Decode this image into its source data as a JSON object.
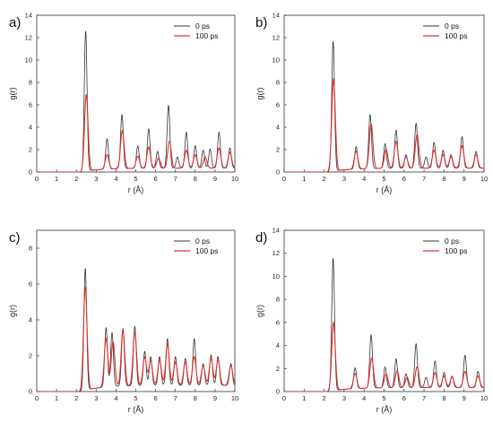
{
  "chart_data": [
    {
      "type": "line",
      "panel_label": "a)",
      "xlabel": "r (Å)",
      "ylabel": "g(r)",
      "xlim": [
        0,
        10
      ],
      "ylim": [
        0,
        14
      ],
      "xticks": [
        0,
        1,
        2,
        3,
        4,
        5,
        6,
        7,
        8,
        9,
        10
      ],
      "yticks": [
        0,
        2,
        4,
        6,
        8,
        10,
        12,
        14
      ],
      "legend": "top-right",
      "series": [
        {
          "name": "0 ps",
          "color": "#333333",
          "peaks": [
            [
              2.47,
              12.5
            ],
            [
              3.55,
              2.7
            ],
            [
              4.3,
              4.8
            ],
            [
              5.1,
              2.0
            ],
            [
              5.65,
              3.5
            ],
            [
              6.1,
              1.5
            ],
            [
              6.65,
              5.6
            ],
            [
              7.1,
              1.0
            ],
            [
              7.55,
              3.2
            ],
            [
              8.0,
              2.0
            ],
            [
              8.4,
              1.6
            ],
            [
              8.75,
              1.7
            ],
            [
              9.2,
              3.2
            ],
            [
              9.75,
              1.8
            ]
          ]
        },
        {
          "name": "100 ps",
          "color": "#e03030",
          "peaks": [
            [
              2.5,
              6.8
            ],
            [
              3.55,
              1.3
            ],
            [
              4.32,
              3.4
            ],
            [
              5.1,
              1.1
            ],
            [
              5.65,
              1.9
            ],
            [
              6.15,
              0.9
            ],
            [
              6.7,
              2.4
            ],
            [
              7.55,
              1.6
            ],
            [
              8.0,
              1.2
            ],
            [
              8.5,
              1.0
            ],
            [
              9.2,
              1.8
            ],
            [
              9.75,
              1.4
            ]
          ]
        }
      ]
    },
    {
      "type": "line",
      "panel_label": "b)",
      "xlabel": "r (Å)",
      "ylabel": "g(r)",
      "xlim": [
        0,
        10
      ],
      "ylim": [
        0,
        14
      ],
      "xticks": [
        0,
        1,
        2,
        3,
        4,
        5,
        6,
        7,
        8,
        9,
        10
      ],
      "yticks": [
        0,
        2,
        4,
        6,
        8,
        10,
        12,
        14
      ],
      "legend": "top-right",
      "series": [
        {
          "name": "0 ps",
          "color": "#333333",
          "peaks": [
            [
              2.45,
              11.6
            ],
            [
              3.6,
              2.0
            ],
            [
              4.3,
              4.8
            ],
            [
              5.05,
              2.2
            ],
            [
              5.6,
              3.4
            ],
            [
              6.1,
              1.2
            ],
            [
              6.6,
              4.0
            ],
            [
              7.1,
              1.0
            ],
            [
              7.5,
              2.3
            ],
            [
              7.95,
              1.6
            ],
            [
              8.35,
              1.2
            ],
            [
              8.9,
              2.8
            ],
            [
              9.6,
              1.5
            ]
          ]
        },
        {
          "name": "100 ps",
          "color": "#e03030",
          "peaks": [
            [
              2.47,
              8.2
            ],
            [
              3.6,
              1.6
            ],
            [
              4.35,
              4.0
            ],
            [
              5.1,
              1.7
            ],
            [
              5.6,
              2.4
            ],
            [
              6.1,
              1.0
            ],
            [
              6.65,
              3.0
            ],
            [
              7.5,
              1.6
            ],
            [
              7.95,
              1.2
            ],
            [
              8.35,
              1.0
            ],
            [
              8.9,
              2.0
            ],
            [
              9.6,
              1.2
            ]
          ]
        }
      ]
    },
    {
      "type": "line",
      "panel_label": "c)",
      "xlabel": "r (Å)",
      "ylabel": "g(r)",
      "xlim": [
        0,
        10
      ],
      "ylim": [
        0,
        9
      ],
      "xticks": [
        0,
        1,
        2,
        3,
        4,
        5,
        6,
        7,
        8,
        9,
        10
      ],
      "yticks": [
        0,
        2,
        4,
        6,
        8
      ],
      "legend": "top-right",
      "series": [
        {
          "name": "0 ps",
          "color": "#333333",
          "peaks": [
            [
              2.45,
              6.8
            ],
            [
              3.5,
              3.3
            ],
            [
              3.8,
              3.0
            ],
            [
              4.35,
              3.2
            ],
            [
              4.95,
              3.3
            ],
            [
              5.45,
              1.9
            ],
            [
              5.75,
              1.6
            ],
            [
              6.2,
              1.6
            ],
            [
              6.6,
              2.6
            ],
            [
              7.0,
              1.6
            ],
            [
              7.5,
              1.5
            ],
            [
              7.95,
              2.6
            ],
            [
              8.4,
              1.2
            ],
            [
              8.8,
              1.7
            ],
            [
              9.15,
              1.6
            ],
            [
              9.8,
              1.2
            ]
          ]
        },
        {
          "name": "100 ps",
          "color": "#e03030",
          "peaks": [
            [
              2.45,
              5.7
            ],
            [
              3.5,
              2.7
            ],
            [
              3.85,
              2.5
            ],
            [
              4.35,
              3.1
            ],
            [
              4.95,
              3.0
            ],
            [
              5.45,
              1.6
            ],
            [
              5.75,
              1.4
            ],
            [
              6.2,
              1.4
            ],
            [
              6.6,
              2.3
            ],
            [
              7.0,
              1.3
            ],
            [
              7.5,
              1.3
            ],
            [
              7.95,
              1.6
            ],
            [
              8.4,
              1.1
            ],
            [
              8.8,
              1.5
            ],
            [
              9.15,
              1.4
            ],
            [
              9.8,
              1.1
            ]
          ]
        }
      ]
    },
    {
      "type": "line",
      "panel_label": "d)",
      "xlabel": "r (Å)",
      "ylabel": "g(r)",
      "xlim": [
        0,
        10
      ],
      "ylim": [
        0,
        14
      ],
      "xticks": [
        0,
        1,
        2,
        3,
        4,
        5,
        6,
        7,
        8,
        9,
        10
      ],
      "yticks": [
        0,
        2,
        4,
        6,
        8,
        10,
        12,
        14
      ],
      "legend": "top-right",
      "series": [
        {
          "name": "0 ps",
          "color": "#333333",
          "peaks": [
            [
              2.45,
              11.5
            ],
            [
              3.55,
              1.8
            ],
            [
              4.35,
              4.6
            ],
            [
              5.05,
              1.8
            ],
            [
              5.6,
              2.5
            ],
            [
              6.1,
              1.2
            ],
            [
              6.6,
              3.8
            ],
            [
              7.1,
              0.9
            ],
            [
              7.55,
              2.3
            ],
            [
              8.0,
              1.3
            ],
            [
              8.4,
              1.0
            ],
            [
              9.05,
              2.8
            ],
            [
              9.7,
              1.4
            ]
          ]
        },
        {
          "name": "100 ps",
          "color": "#e03030",
          "peaks": [
            [
              2.47,
              5.9
            ],
            [
              3.55,
              1.3
            ],
            [
              4.38,
              2.6
            ],
            [
              5.1,
              1.2
            ],
            [
              5.65,
              1.5
            ],
            [
              6.15,
              0.9
            ],
            [
              6.65,
              1.8
            ],
            [
              7.55,
              1.3
            ],
            [
              8.0,
              1.0
            ],
            [
              8.4,
              0.9
            ],
            [
              9.05,
              1.4
            ],
            [
              9.7,
              1.0
            ]
          ]
        }
      ]
    }
  ]
}
